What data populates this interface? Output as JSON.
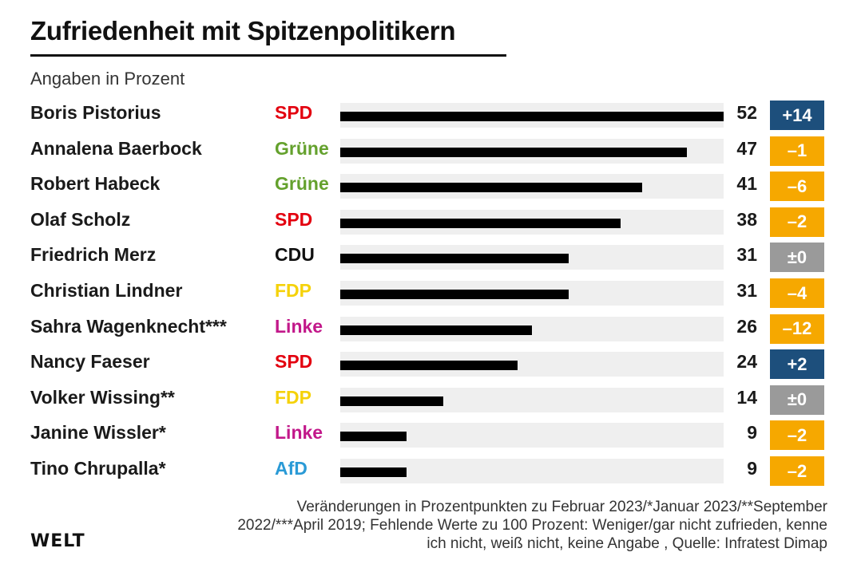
{
  "chart_data": {
    "type": "bar",
    "orientation": "horizontal",
    "title": "Zufriedenheit mit Spitzenpolitikern",
    "subtitle": "Angaben in Prozent",
    "xlim": [
      0,
      52
    ],
    "rows": [
      {
        "name": "Boris Pistorius",
        "party": "SPD",
        "value": 52,
        "value_label": "52",
        "change": "+14",
        "change_kind": "positive"
      },
      {
        "name": "Annalena Baerbock",
        "party": "Grüne",
        "value": 47,
        "value_label": "47",
        "change": "–1",
        "change_kind": "negative"
      },
      {
        "name": "Robert Habeck",
        "party": "Grüne",
        "value": 41,
        "value_label": "41",
        "change": "–6",
        "change_kind": "negative"
      },
      {
        "name": "Olaf Scholz",
        "party": "SPD",
        "value": 38,
        "value_label": "38",
        "change": "–2",
        "change_kind": "negative"
      },
      {
        "name": "Friedrich Merz",
        "party": "CDU",
        "value": 31,
        "value_label": "31",
        "change": "±0",
        "change_kind": "neutral"
      },
      {
        "name": "Christian Lindner",
        "party": "FDP",
        "value": 31,
        "value_label": "31",
        "change": "–4",
        "change_kind": "negative"
      },
      {
        "name": "Sahra Wagenknecht***",
        "party": "Linke",
        "value": 26,
        "value_label": "26",
        "change": "–12",
        "change_kind": "negative"
      },
      {
        "name": "Nancy Faeser",
        "party": "SPD",
        "value": 24,
        "value_label": "24",
        "change": "+2",
        "change_kind": "positive"
      },
      {
        "name": "Volker Wissing**",
        "party": "FDP",
        "value": 14,
        "value_label": "14",
        "change": "±0",
        "change_kind": "neutral"
      },
      {
        "name": "Janine Wissler*",
        "party": "Linke",
        "value": 9,
        "value_label": "9",
        "change": "–2",
        "change_kind": "negative"
      },
      {
        "name": "Tino Chrupalla*",
        "party": "AfD",
        "value": 9,
        "value_label": "9",
        "change": "–2",
        "change_kind": "negative"
      }
    ]
  },
  "party_colors": {
    "SPD": "#e3000f",
    "Grüne": "#64a12d",
    "CDU": "#111111",
    "FDP": "#f5d20a",
    "Linke": "#c2188a",
    "AfD": "#2a9ad6"
  },
  "change_colors": {
    "positive": "#1d4f7c",
    "negative": "#f6a800",
    "neutral": "#9a9a9a"
  },
  "footnote": {
    "line1": "Veränderungen in Prozentpunkten zu Februar 2023/*Januar 2023/**September",
    "line2": "2022/***April 2019; Fehlende Werte zu 100 Prozent: Weniger/gar nicht zufrieden, kenne",
    "line3": "ich nicht, weiß nicht, keine Angabe , Quelle: Infratest Dimap"
  },
  "logo": "WELT"
}
